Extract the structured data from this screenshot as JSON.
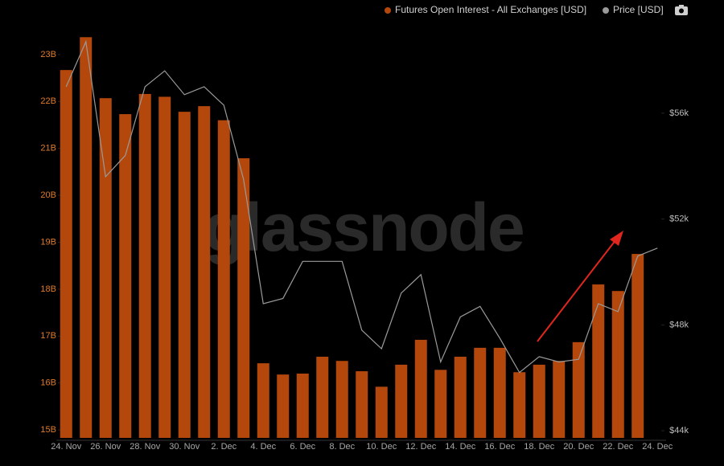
{
  "chart_data": {
    "type": "bar",
    "watermark": "glassnode",
    "categories": [
      "24. Nov",
      null,
      "26. Nov",
      null,
      "28. Nov",
      null,
      "30. Nov",
      null,
      "2. Dec",
      null,
      "4. Dec",
      null,
      "6. Dec",
      null,
      "8. Dec",
      null,
      "10. Dec",
      null,
      "12. Dec",
      null,
      "14. Dec",
      null,
      "16. Dec",
      null,
      "18. Dec",
      null,
      "20. Dec",
      null,
      "22. Dec",
      null,
      "24. Dec"
    ],
    "series": [
      {
        "name": "Futures Open Interest - All Exchanges [USD]",
        "type": "bar",
        "color": "#b4480c",
        "axis": "y",
        "values": [
          22.67,
          23.37,
          22.07,
          21.73,
          22.16,
          22.1,
          21.78,
          21.9,
          21.6,
          20.79,
          16.42,
          16.18,
          16.2,
          16.56,
          16.47,
          16.25,
          15.92,
          16.39,
          16.92,
          16.28,
          16.56,
          16.75,
          16.75,
          16.23,
          16.39,
          16.47,
          16.87,
          18.1,
          17.96,
          18.75,
          null
        ]
      },
      {
        "name": "Price [USD]",
        "type": "line",
        "color": "#9a9a9a",
        "axis": "y2",
        "values": [
          57.0,
          58.7,
          53.6,
          54.4,
          57.0,
          57.6,
          56.7,
          57.0,
          56.3,
          53.5,
          48.8,
          49.0,
          50.4,
          50.4,
          50.4,
          47.8,
          47.1,
          49.2,
          49.9,
          46.6,
          48.3,
          48.7,
          47.5,
          46.2,
          46.8,
          46.6,
          46.7,
          48.8,
          48.5,
          50.6,
          50.9
        ]
      }
    ],
    "ylim": [
      14.83,
      23.82
    ],
    "yticks": [
      {
        "value": 15,
        "label": "15B"
      },
      {
        "value": 16,
        "label": "16B"
      },
      {
        "value": 17,
        "label": "17B"
      },
      {
        "value": 18,
        "label": "18B"
      },
      {
        "value": 19,
        "label": "19B"
      },
      {
        "value": 20,
        "label": "20B"
      },
      {
        "value": 21,
        "label": "21B"
      },
      {
        "value": 22,
        "label": "22B"
      },
      {
        "value": 23,
        "label": "23B"
      }
    ],
    "y2lim": [
      43.73,
      59.67
    ],
    "y2ticks": [
      {
        "value": 44,
        "label": "$44k"
      },
      {
        "value": 48,
        "label": "$48k"
      },
      {
        "value": 52,
        "label": "$52k"
      },
      {
        "value": 56,
        "label": "$56k"
      }
    ],
    "grid": false
  }
}
